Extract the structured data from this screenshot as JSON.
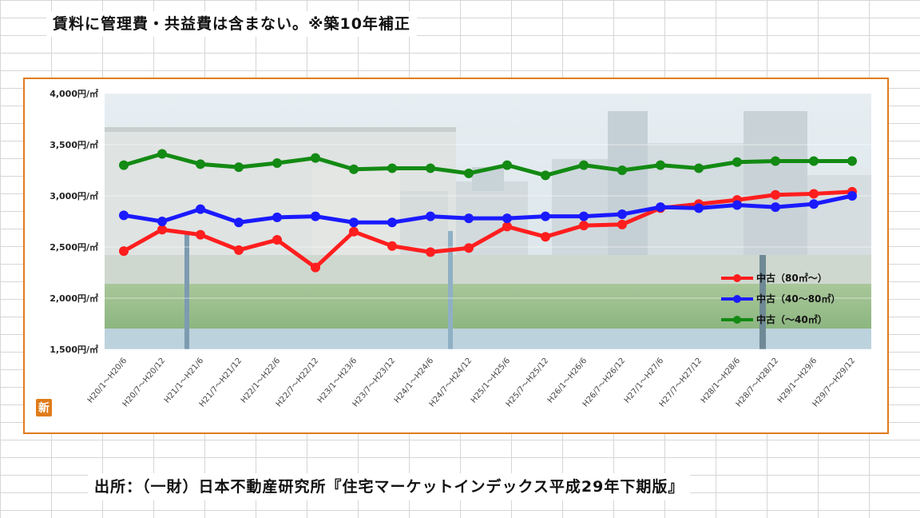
{
  "note": "賃料に管理費・共益費は含まない。※築10年補正",
  "source": "出所：（一財）日本不動産研究所『住宅マーケットインデックス平成29年下期版』",
  "badge": "新",
  "chart_data": {
    "type": "line",
    "ylim": [
      1500,
      4000
    ],
    "yticks": [
      {
        "value": 1500,
        "label": "1,500円/㎡"
      },
      {
        "value": 2000,
        "label": "2,000円/㎡"
      },
      {
        "value": 2500,
        "label": "2,500円/㎡"
      },
      {
        "value": 3000,
        "label": "3,000円/㎡"
      },
      {
        "value": 3500,
        "label": "3,500円/㎡"
      },
      {
        "value": 4000,
        "label": "4,000円/㎡"
      }
    ],
    "categories": [
      "H20/1～H20/6",
      "H20/7～H20/12",
      "H21/1～H21/6",
      "H21/7～H21/12",
      "H22/1～H22/6",
      "H22/7～H22/12",
      "H23/1～H23/6",
      "H23/7～H23/12",
      "H24/1～H24/6",
      "H24/7～H24/12",
      "H25/1～H25/6",
      "H25/7～H25/12",
      "H26/1～H26/6",
      "H26/7～H26/12",
      "H27/1～H27/6",
      "H27/7～H27/12",
      "H28/1～H28/6",
      "H28/7～H28/12",
      "H29/1～H29/6",
      "H29/7～H29/12"
    ],
    "legend_position": "right",
    "series": [
      {
        "name": "中古（80㎡～）",
        "color": "#ff1e1e",
        "values": [
          2460,
          2670,
          2620,
          2470,
          2570,
          2300,
          2650,
          2510,
          2450,
          2490,
          2700,
          2600,
          2710,
          2720,
          2880,
          2920,
          2960,
          3010,
          3020,
          3040
        ]
      },
      {
        "name": "中古（40～80㎡）",
        "color": "#1a1aff",
        "values": [
          2810,
          2750,
          2870,
          2740,
          2790,
          2800,
          2740,
          2740,
          2800,
          2780,
          2780,
          2800,
          2800,
          2820,
          2890,
          2880,
          2910,
          2890,
          2920,
          3000
        ]
      },
      {
        "name": "中古（～40㎡）",
        "color": "#138a13",
        "values": [
          3300,
          3410,
          3310,
          3280,
          3320,
          3370,
          3260,
          3270,
          3270,
          3220,
          3300,
          3200,
          3300,
          3250,
          3300,
          3270,
          3330,
          3340,
          3340,
          3340
        ]
      }
    ]
  }
}
